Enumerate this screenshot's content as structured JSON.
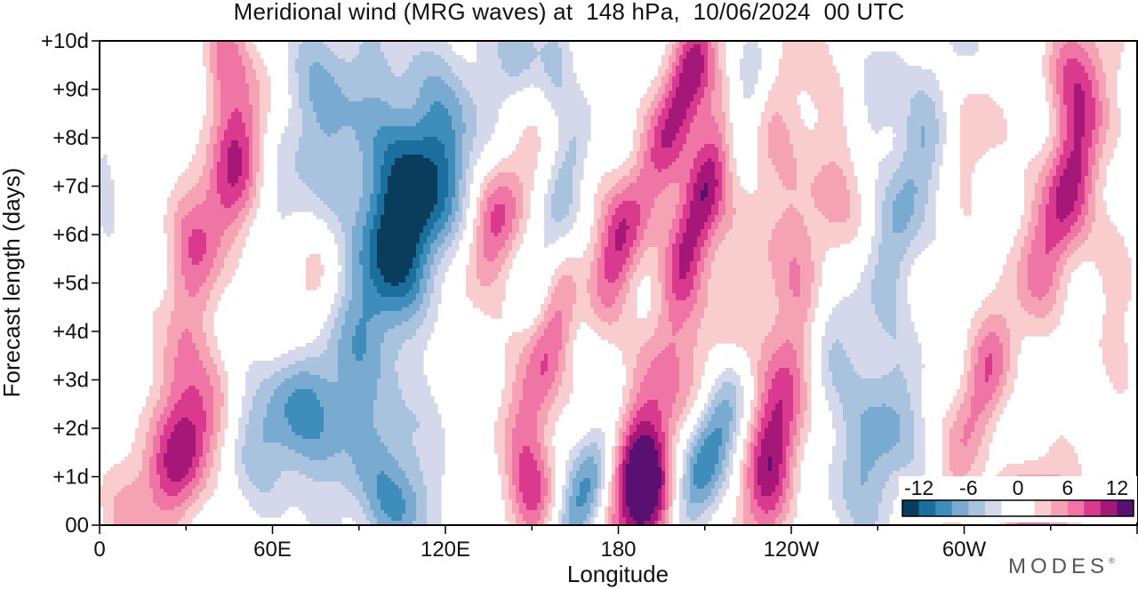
{
  "chart_data": {
    "type": "heatmap",
    "title": "Meridional wind (MRG waves) at  148 hPa,  10/06/2024  00 UTC",
    "xlabel": "Longitude",
    "ylabel": "Forecast length (days)",
    "x_ticks": [
      "0",
      "60E",
      "120E",
      "180",
      "120W",
      "60W"
    ],
    "y_ticks": [
      "00",
      "+1d",
      "+2d",
      "+3d",
      "+4d",
      "+5d",
      "+6d",
      "+7d",
      "+8d",
      "+9d",
      "+10d"
    ],
    "xlim": [
      0,
      360
    ],
    "ylim": [
      0,
      10
    ],
    "colorbar": {
      "tick_labels": [
        "-12",
        "-6",
        "0",
        "6",
        "12"
      ],
      "levels": [
        -14,
        -12,
        -10,
        -8,
        -6,
        -4,
        -2,
        0,
        2,
        4,
        6,
        8,
        10,
        12,
        14
      ],
      "colors": [
        "#0a3d5c",
        "#1a6f9c",
        "#3f8dbb",
        "#79abd0",
        "#a9c3df",
        "#d3d9ea",
        "#ffffff",
        "#ffffff",
        "#f9cccd",
        "#f5a3b4",
        "#ef75a4",
        "#d93a8e",
        "#a51878",
        "#5a1070"
      ]
    },
    "features": [
      {
        "lon": 47,
        "day": 7.4,
        "amp": 11,
        "slon": 8,
        "sday": 1.6,
        "rot": -0.4
      },
      {
        "lon": 44,
        "day": 9.7,
        "amp": 7,
        "slon": 6,
        "sday": 0.9,
        "rot": 0
      },
      {
        "lon": 30,
        "day": 1.5,
        "amp": 10.5,
        "slon": 9,
        "sday": 1.1,
        "rot": -0.5
      },
      {
        "lon": 28,
        "day": 3.0,
        "amp": 5,
        "slon": 6,
        "sday": 1.0,
        "rot": 0
      },
      {
        "lon": 30,
        "day": 5.5,
        "amp": 4,
        "slon": 6,
        "sday": 1.2,
        "rot": 0
      },
      {
        "lon": 75,
        "day": 5.0,
        "amp": 5,
        "slon": 10,
        "sday": 1.2,
        "rot": -0.5
      },
      {
        "lon": 106,
        "day": 6.2,
        "amp": -14,
        "slon": 12,
        "sday": 1.8,
        "rot": -0.5
      },
      {
        "lon": 85,
        "day": 7.8,
        "amp": -5,
        "slon": 22,
        "sday": 1.8,
        "rot": -0.4
      },
      {
        "lon": 70,
        "day": 9.5,
        "amp": -3,
        "slon": 18,
        "sday": 1.2,
        "rot": 0
      },
      {
        "lon": 65,
        "day": 2.3,
        "amp": -8,
        "slon": 14,
        "sday": 1.1,
        "rot": -0.4
      },
      {
        "lon": 95,
        "day": 1.5,
        "amp": -5,
        "slon": 14,
        "sday": 1.2,
        "rot": -0.3
      },
      {
        "lon": 105,
        "day": 0.3,
        "amp": -6,
        "slon": 8,
        "sday": 0.8,
        "rot": 0
      },
      {
        "lon": 138,
        "day": 6.3,
        "amp": 8.5,
        "slon": 7,
        "sday": 1.1,
        "rot": -0.4
      },
      {
        "lon": 158,
        "day": 3.8,
        "amp": 8.5,
        "slon": 7,
        "sday": 1.2,
        "rot": -0.4
      },
      {
        "lon": 148,
        "day": 1.7,
        "amp": 4,
        "slon": 8,
        "sday": 1.2,
        "rot": 0
      },
      {
        "lon": 150,
        "day": 0.5,
        "amp": 6,
        "slon": 6,
        "sday": 0.7,
        "rot": 0
      },
      {
        "lon": 180,
        "day": 5.8,
        "amp": 10,
        "slon": 7,
        "sday": 1.3,
        "rot": -0.5
      },
      {
        "lon": 188,
        "day": 0.6,
        "amp": 14,
        "slon": 9,
        "sday": 1.0,
        "rot": 0
      },
      {
        "lon": 192,
        "day": 2.4,
        "amp": 6,
        "slon": 8,
        "sday": 1.3,
        "rot": -0.3
      },
      {
        "lon": 208,
        "day": 6.5,
        "amp": 12,
        "slon": 6,
        "sday": 1.5,
        "rot": -0.4
      },
      {
        "lon": 203,
        "day": 9.0,
        "amp": 12,
        "slon": 6,
        "sday": 1.2,
        "rot": -0.4
      },
      {
        "lon": 169,
        "day": 0.7,
        "amp": -10.5,
        "slon": 6,
        "sday": 1.0,
        "rot": -0.4
      },
      {
        "lon": 166,
        "day": 4.2,
        "amp": -6,
        "slon": 5,
        "sday": 1.1,
        "rot": -0.3
      },
      {
        "lon": 160,
        "day": 6.8,
        "amp": -5,
        "slon": 5,
        "sday": 1.5,
        "rot": -0.4
      },
      {
        "lon": 145,
        "day": 9.8,
        "amp": -5,
        "slon": 5,
        "sday": 0.7,
        "rot": 0
      },
      {
        "lon": 159,
        "day": 9.8,
        "amp": -4,
        "slon": 5,
        "sday": 0.8,
        "rot": 0
      },
      {
        "lon": 211,
        "day": 1.5,
        "amp": -12,
        "slon": 7,
        "sday": 1.3,
        "rot": -0.5
      },
      {
        "lon": 225,
        "day": 9.0,
        "amp": -6,
        "slon": 5,
        "sday": 1.2,
        "rot": -0.3
      },
      {
        "lon": 234,
        "day": 1.6,
        "amp": 11,
        "slon": 7,
        "sday": 1.6,
        "rot": -0.3
      },
      {
        "lon": 235,
        "day": 8.7,
        "amp": 3.5,
        "slon": 10,
        "sday": 2.0,
        "rot": -0.3
      },
      {
        "lon": 252,
        "day": 3.8,
        "amp": -5,
        "slon": 7,
        "sday": 1.2,
        "rot": -0.2
      },
      {
        "lon": 270,
        "day": 1.7,
        "amp": -7,
        "slon": 10,
        "sday": 1.4,
        "rot": -0.3
      },
      {
        "lon": 280,
        "day": 6.8,
        "amp": -7,
        "slon": 7,
        "sday": 1.8,
        "rot": -0.4
      },
      {
        "lon": 270,
        "day": 8.8,
        "amp": -5,
        "slon": 6,
        "sday": 1.0,
        "rot": -0.2
      },
      {
        "lon": 305,
        "day": 2.6,
        "amp": 8,
        "slon": 6,
        "sday": 1.5,
        "rot": -0.4
      },
      {
        "lon": 325,
        "day": 0.6,
        "amp": 9,
        "slon": 10,
        "sday": 0.9,
        "rot": 0
      },
      {
        "lon": 335,
        "day": 6.8,
        "amp": 11,
        "slon": 7,
        "sday": 1.6,
        "rot": -0.4
      },
      {
        "lon": 338,
        "day": 9.5,
        "amp": 7,
        "slon": 7,
        "sday": 0.9,
        "rot": 0
      },
      {
        "lon": 305,
        "day": 8.5,
        "amp": 4,
        "slon": 7,
        "sday": 1.2,
        "rot": -0.2
      },
      {
        "lon": 320,
        "day": 1.4,
        "amp": -3.5,
        "slon": 12,
        "sday": 0.8,
        "rot": 0
      },
      {
        "lon": 310,
        "day": 9.8,
        "amp": -3,
        "slon": 10,
        "sday": 0.7,
        "rot": 0
      },
      {
        "lon": 2,
        "day": 7.0,
        "amp": -3.5,
        "slon": 4,
        "sday": 1.5,
        "rot": 0
      },
      {
        "lon": 258,
        "day": 7.0,
        "amp": 3.5,
        "slon": 10,
        "sday": 1.6,
        "rot": -0.3
      },
      {
        "lon": 240,
        "day": 4.8,
        "amp": 3.5,
        "slon": 10,
        "sday": 1.8,
        "rot": -0.2
      },
      {
        "lon": 215,
        "day": 3.5,
        "amp": 3.5,
        "slon": 10,
        "sday": 1.6,
        "rot": -0.3
      },
      {
        "lon": 355,
        "day": 5.0,
        "amp": 3.5,
        "slon": 6,
        "sday": 1.5,
        "rot": 0
      },
      {
        "lon": 10,
        "day": 0.5,
        "amp": 3.2,
        "slon": 6,
        "sday": 1.0,
        "rot": 0
      }
    ]
  },
  "brand": "MODES",
  "brand_mark": "®"
}
